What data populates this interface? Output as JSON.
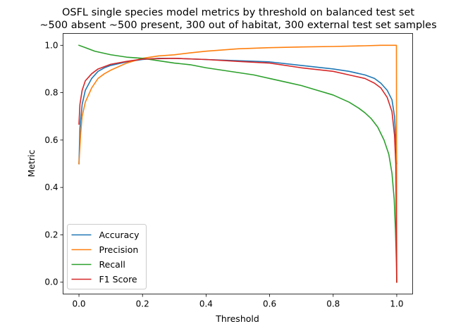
{
  "chart_data": {
    "type": "line",
    "title": [
      "OSFL single species model metrics by threshold on balanced test set",
      "~500 absent ~500 present, 300 out of habitat, 300 external test set samples"
    ],
    "xlabel": "Threshold",
    "ylabel": "Metric",
    "xlim": [
      -0.05,
      1.05
    ],
    "ylim": [
      -0.05,
      1.05
    ],
    "xticks": [
      0.0,
      0.2,
      0.4,
      0.6,
      0.8,
      1.0
    ],
    "xtick_labels": [
      "0.0",
      "0.2",
      "0.4",
      "0.6",
      "0.8",
      "1.0"
    ],
    "yticks": [
      0.0,
      0.2,
      0.4,
      0.6,
      0.8,
      1.0
    ],
    "ytick_labels": [
      "0.0",
      "0.2",
      "0.4",
      "0.6",
      "0.8",
      "1.0"
    ],
    "grid": false,
    "legend_position": "lower-left",
    "series": [
      {
        "name": "Accuracy",
        "color": "#1f77b4",
        "points": [
          [
            0.0,
            0.5
          ],
          [
            0.003,
            0.65
          ],
          [
            0.01,
            0.75
          ],
          [
            0.02,
            0.81
          ],
          [
            0.04,
            0.86
          ],
          [
            0.06,
            0.89
          ],
          [
            0.08,
            0.905
          ],
          [
            0.1,
            0.915
          ],
          [
            0.15,
            0.93
          ],
          [
            0.2,
            0.94
          ],
          [
            0.25,
            0.945
          ],
          [
            0.3,
            0.945
          ],
          [
            0.4,
            0.94
          ],
          [
            0.5,
            0.935
          ],
          [
            0.6,
            0.93
          ],
          [
            0.7,
            0.915
          ],
          [
            0.8,
            0.9
          ],
          [
            0.85,
            0.89
          ],
          [
            0.9,
            0.875
          ],
          [
            0.93,
            0.86
          ],
          [
            0.95,
            0.84
          ],
          [
            0.97,
            0.81
          ],
          [
            0.985,
            0.77
          ],
          [
            0.993,
            0.7
          ],
          [
            0.997,
            0.6
          ],
          [
            1.0,
            0.5
          ]
        ]
      },
      {
        "name": "Precision",
        "color": "#ff7f0e",
        "points": [
          [
            0.0,
            0.5
          ],
          [
            0.005,
            0.62
          ],
          [
            0.01,
            0.7
          ],
          [
            0.02,
            0.76
          ],
          [
            0.04,
            0.82
          ],
          [
            0.06,
            0.86
          ],
          [
            0.08,
            0.88
          ],
          [
            0.1,
            0.895
          ],
          [
            0.15,
            0.925
          ],
          [
            0.2,
            0.945
          ],
          [
            0.25,
            0.955
          ],
          [
            0.3,
            0.96
          ],
          [
            0.35,
            0.968
          ],
          [
            0.4,
            0.975
          ],
          [
            0.5,
            0.985
          ],
          [
            0.6,
            0.99
          ],
          [
            0.7,
            0.993
          ],
          [
            0.8,
            0.995
          ],
          [
            0.9,
            0.998
          ],
          [
            0.95,
            1.0
          ],
          [
            0.999,
            1.0
          ],
          [
            1.0,
            0.0
          ]
        ]
      },
      {
        "name": "Recall",
        "color": "#2ca02c",
        "points": [
          [
            0.0,
            1.0
          ],
          [
            0.02,
            0.99
          ],
          [
            0.05,
            0.975
          ],
          [
            0.1,
            0.96
          ],
          [
            0.15,
            0.95
          ],
          [
            0.2,
            0.945
          ],
          [
            0.25,
            0.935
          ],
          [
            0.3,
            0.925
          ],
          [
            0.35,
            0.918
          ],
          [
            0.4,
            0.905
          ],
          [
            0.45,
            0.895
          ],
          [
            0.5,
            0.885
          ],
          [
            0.55,
            0.875
          ],
          [
            0.6,
            0.86
          ],
          [
            0.65,
            0.845
          ],
          [
            0.7,
            0.83
          ],
          [
            0.75,
            0.81
          ],
          [
            0.8,
            0.79
          ],
          [
            0.85,
            0.76
          ],
          [
            0.88,
            0.735
          ],
          [
            0.9,
            0.715
          ],
          [
            0.92,
            0.69
          ],
          [
            0.94,
            0.655
          ],
          [
            0.96,
            0.6
          ],
          [
            0.975,
            0.54
          ],
          [
            0.985,
            0.46
          ],
          [
            0.992,
            0.35
          ],
          [
            0.996,
            0.22
          ],
          [
            0.999,
            0.08
          ],
          [
            1.0,
            0.0
          ]
        ]
      },
      {
        "name": "F1 Score",
        "color": "#d62728",
        "points": [
          [
            0.0,
            0.667
          ],
          [
            0.003,
            0.75
          ],
          [
            0.01,
            0.81
          ],
          [
            0.02,
            0.85
          ],
          [
            0.04,
            0.88
          ],
          [
            0.06,
            0.9
          ],
          [
            0.08,
            0.91
          ],
          [
            0.1,
            0.92
          ],
          [
            0.15,
            0.932
          ],
          [
            0.2,
            0.942
          ],
          [
            0.3,
            0.945
          ],
          [
            0.4,
            0.94
          ],
          [
            0.5,
            0.932
          ],
          [
            0.6,
            0.925
          ],
          [
            0.7,
            0.905
          ],
          [
            0.8,
            0.89
          ],
          [
            0.85,
            0.875
          ],
          [
            0.9,
            0.86
          ],
          [
            0.93,
            0.84
          ],
          [
            0.95,
            0.82
          ],
          [
            0.97,
            0.78
          ],
          [
            0.985,
            0.72
          ],
          [
            0.993,
            0.62
          ],
          [
            0.997,
            0.5
          ],
          [
            1.0,
            0.0
          ]
        ]
      }
    ]
  }
}
